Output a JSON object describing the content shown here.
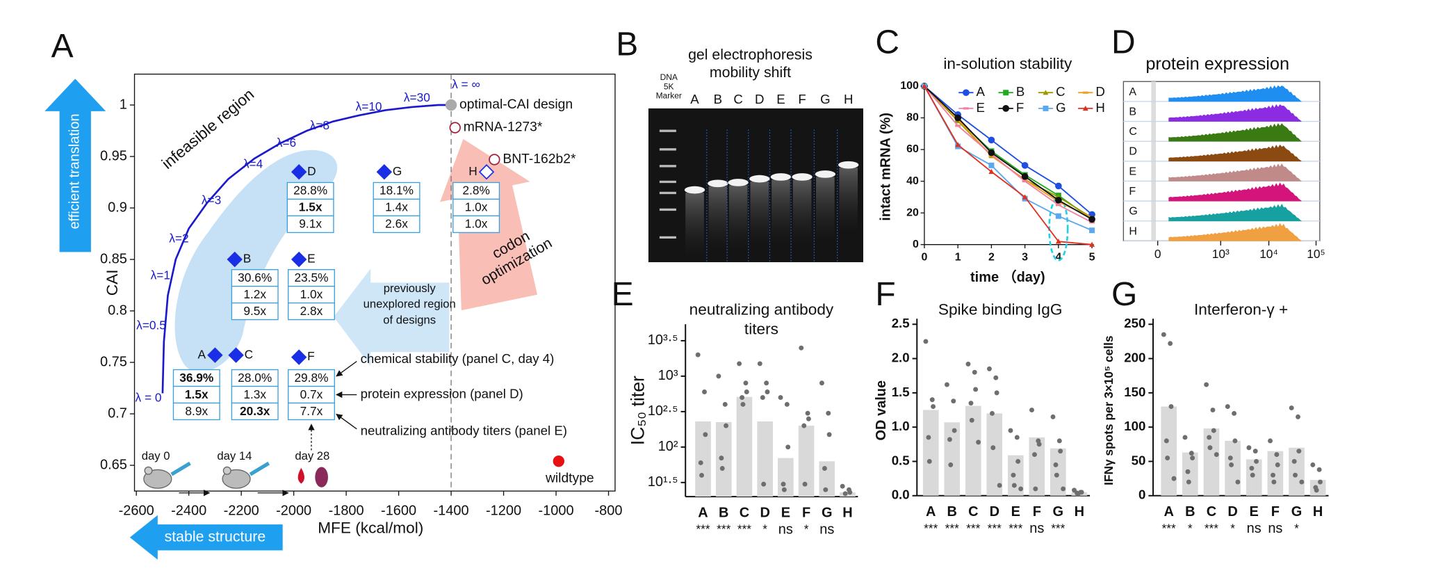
{
  "chart_data": [
    {
      "type": "scatter",
      "label": "A",
      "x_label": "MFE (kcal/mol)",
      "y_label": "CAI",
      "xlim": [
        -2600,
        -775
      ],
      "xticks": [
        -2600,
        -2400,
        -2200,
        -2000,
        -1800,
        -1600,
        -1400,
        -1200,
        -1000,
        -800
      ],
      "ylim": [
        0.625,
        1.03
      ],
      "yticks": [
        0.65,
        0.7,
        0.75,
        0.8,
        0.85,
        0.9,
        0.95,
        1
      ],
      "reference_x": -1400,
      "curve": {
        "color": "#1a1acc",
        "x": [
          -2500,
          -2495,
          -2480,
          -2450,
          -2400,
          -2330,
          -2250,
          -2150,
          -2050,
          -1950,
          -1850,
          -1750,
          -1650,
          -1550,
          -1450,
          -1400
        ],
        "y": [
          0.72,
          0.77,
          0.815,
          0.85,
          0.88,
          0.905,
          0.928,
          0.948,
          0.963,
          0.975,
          0.984,
          0.99,
          0.995,
          0.998,
          1.0,
          1.0
        ]
      },
      "lambda_labels": [
        "λ = 0",
        "λ=0.5",
        "λ=1",
        "λ=2",
        "λ=3",
        "λ=4",
        "λ=6",
        "λ=8",
        "λ=10",
        "λ=30",
        "λ = ∞"
      ],
      "points": [
        {
          "name": "A",
          "x": -2300,
          "y": 0.757,
          "marker": "diamond",
          "color": "#1a2ee6"
        },
        {
          "name": "C",
          "x": -2220,
          "y": 0.757,
          "marker": "diamond",
          "color": "#1a2ee6"
        },
        {
          "name": "B",
          "x": -2225,
          "y": 0.85,
          "marker": "diamond",
          "color": "#1a2ee6"
        },
        {
          "name": "D",
          "x": -1980,
          "y": 0.935,
          "marker": "diamond",
          "color": "#1a2ee6"
        },
        {
          "name": "E",
          "x": -1980,
          "y": 0.85,
          "marker": "diamond",
          "color": "#1a2ee6"
        },
        {
          "name": "F",
          "x": -1980,
          "y": 0.755,
          "marker": "diamond",
          "color": "#1a2ee6"
        },
        {
          "name": "G",
          "x": -1655,
          "y": 0.935,
          "marker": "diamond",
          "color": "#1a2ee6"
        },
        {
          "name": "H",
          "x": -1265,
          "y": 0.935,
          "marker": "open-diamond",
          "color": "#1a2ee6"
        },
        {
          "name": "mRNA-1273*",
          "x": -1385,
          "y": 0.978,
          "marker": "open-circle",
          "color": "#a0203a"
        },
        {
          "name": "BNT-162b2*",
          "x": -1235,
          "y": 0.947,
          "marker": "open-circle",
          "color": "#a0203a"
        },
        {
          "name": "optimal-CAI design",
          "x": -1400,
          "y": 1.0,
          "marker": "circle",
          "color": "#aaaaaa"
        },
        {
          "name": "wildtype",
          "x": -990,
          "y": 0.654,
          "marker": "circle",
          "color": "#e81010"
        }
      ],
      "metrics": [
        {
          "point": "D",
          "rows": [
            "28.8%",
            "1.5x",
            "9.1x"
          ],
          "bold": [
            false,
            true,
            false
          ]
        },
        {
          "point": "G",
          "rows": [
            "18.1%",
            "1.4x",
            "2.6x"
          ],
          "bold": [
            false,
            false,
            false
          ]
        },
        {
          "point": "H",
          "rows": [
            "2.8%",
            "1.0x",
            "1.0x"
          ],
          "bold": [
            false,
            false,
            false
          ]
        },
        {
          "point": "B",
          "rows": [
            "30.6%",
            "1.2x",
            "9.5x"
          ],
          "bold": [
            false,
            false,
            false
          ]
        },
        {
          "point": "E",
          "rows": [
            "23.5%",
            "1.0x",
            "2.8x"
          ],
          "bold": [
            false,
            false,
            false
          ]
        },
        {
          "point": "A",
          "rows": [
            "36.9%",
            "1.5x",
            "8.9x"
          ],
          "bold": [
            true,
            true,
            false
          ]
        },
        {
          "point": "C",
          "rows": [
            "28.0%",
            "1.3x",
            "20.3x"
          ],
          "bold": [
            false,
            false,
            true
          ]
        },
        {
          "point": "F",
          "rows": [
            "29.8%",
            "0.7x",
            "7.7x"
          ],
          "bold": [
            false,
            false,
            false
          ]
        }
      ],
      "annotations": {
        "infeasible": "infeasible region",
        "unexplored": [
          "previously",
          "unexplored region",
          "of designs"
        ],
        "codon": [
          "codon",
          "optimization"
        ],
        "legend": [
          "chemical stability (panel C, day 4)",
          "protein expression (panel D)",
          "neutralizing antibody titers (panel E)"
        ],
        "days": [
          "day 0",
          "day 14",
          "day 28"
        ],
        "y_arrow": "efficient translation",
        "x_arrow": "stable structure"
      }
    },
    {
      "type": "line",
      "label": "C",
      "title": "in-solution stability",
      "x_label": "time （day)",
      "y_label": "intact mRNA  (%)",
      "xlim": [
        0,
        5
      ],
      "xticks": [
        0,
        1,
        2,
        3,
        4,
        5
      ],
      "ylim": [
        0,
        100
      ],
      "yticks": [
        0,
        20,
        40,
        60,
        80,
        100
      ],
      "x": [
        0,
        1,
        2,
        3,
        4,
        5
      ],
      "series": [
        {
          "name": "A",
          "color": "#1f4fe0",
          "marker": "circle",
          "values": [
            100,
            82,
            66,
            50,
            37,
            19
          ]
        },
        {
          "name": "B",
          "color": "#22aa22",
          "marker": "square",
          "values": [
            100,
            79,
            59,
            44,
            31,
            16
          ]
        },
        {
          "name": "C",
          "color": "#9a9a00",
          "marker": "triangle",
          "values": [
            100,
            78,
            56,
            41,
            30,
            17
          ]
        },
        {
          "name": "D",
          "color": "#f0a020",
          "marker": "dash",
          "values": [
            100,
            79,
            56,
            41,
            27,
            17
          ]
        },
        {
          "name": "E",
          "color": "#f080a0",
          "marker": "dash",
          "values": [
            100,
            75,
            57,
            40,
            25,
            14
          ]
        },
        {
          "name": "F",
          "color": "#111111",
          "marker": "circle",
          "values": [
            100,
            80,
            58,
            43,
            28,
            16
          ]
        },
        {
          "name": "G",
          "color": "#5aa8f0",
          "marker": "square",
          "values": [
            100,
            62,
            50,
            29,
            18,
            9
          ]
        },
        {
          "name": "H",
          "color": "#e03020",
          "marker": "triangle",
          "values": [
            100,
            63,
            46,
            30,
            2,
            0
          ]
        }
      ]
    },
    {
      "type": "bar",
      "label": "E",
      "title": [
        "neutralizing antibody",
        "titers"
      ],
      "y_label": "IC₅₀ titer",
      "log": true,
      "ylim": [
        20,
        4500
      ],
      "yticks": [
        {
          "value": 31.62,
          "label": "10¹·⁵"
        },
        {
          "value": 100,
          "label": "10²"
        },
        {
          "value": 316.2,
          "label": "10²·⁵"
        },
        {
          "value": 1000,
          "label": "10³"
        },
        {
          "value": 3162,
          "label": "10³·⁵"
        }
      ],
      "categories": [
        "A",
        "B",
        "C",
        "D",
        "E",
        "F",
        "G",
        "H"
      ],
      "values": [
        230,
        225,
        510,
        230,
        70,
        200,
        63,
        23
      ],
      "color": "#d9d9d9",
      "points": [
        [
          2000,
          600,
          150,
          60,
          40
        ],
        [
          1000,
          400,
          200,
          70,
          50
        ],
        [
          1500,
          800,
          600,
          500,
          400
        ],
        [
          1500,
          800,
          600,
          500,
          30
        ],
        [
          500,
          400,
          100,
          30,
          25
        ],
        [
          2500,
          300,
          250,
          200,
          30
        ],
        [
          800,
          300,
          150,
          50,
          25
        ],
        [
          28,
          25,
          23,
          22
        ]
      ],
      "significance": [
        "***",
        "***",
        "***",
        "*",
        "ns",
        "*",
        "ns",
        null
      ]
    },
    {
      "type": "bar",
      "label": "F",
      "title": [
        "Spike binding IgG"
      ],
      "y_label": "OD value",
      "log": false,
      "ylim": [
        0,
        2.5
      ],
      "yticks": [
        {
          "value": 0,
          "label": "0.0"
        },
        0.5,
        {
          "value": 1,
          "label": "1.0"
        },
        1.5,
        {
          "value": 2,
          "label": "2.0"
        },
        2.5
      ],
      "categories": [
        "A",
        "B",
        "C",
        "D",
        "E",
        "F",
        "G",
        "H"
      ],
      "values": [
        1.25,
        1.07,
        1.31,
        1.2,
        0.59,
        0.85,
        0.69,
        0.05
      ],
      "color": "#d9d9d9",
      "points": [
        [
          2.25,
          1.4,
          1.3,
          0.85,
          0.5
        ],
        [
          1.62,
          1.38,
          0.95,
          0.82,
          0.45
        ],
        [
          1.92,
          1.8,
          1.55,
          1.35,
          1.1,
          0.78
        ],
        [
          1.85,
          1.72,
          1.5,
          1.2,
          0.7,
          0.15
        ],
        [
          0.95,
          0.85,
          0.5,
          0.3,
          0.15,
          0.1
        ],
        [
          1.25,
          0.8,
          0.75,
          0.6,
          0.1
        ],
        [
          1.15,
          0.8,
          0.65,
          0.45,
          0.3,
          0.1
        ],
        [
          0.08,
          0.05,
          0.05,
          0.04,
          0.02
        ]
      ],
      "significance": [
        "***",
        "***",
        "***",
        "***",
        "***",
        "ns",
        "***",
        null
      ]
    },
    {
      "type": "bar",
      "label": "G",
      "title": [
        "Interferon-γ +"
      ],
      "y_label": "IFNγ spots per 3×10⁵ cells",
      "log": false,
      "ylim": [
        0,
        250
      ],
      "yticks": [
        0,
        50,
        100,
        150,
        200,
        250
      ],
      "categories": [
        "A",
        "B",
        "C",
        "D",
        "E",
        "F",
        "G",
        "H"
      ],
      "values": [
        130,
        63,
        98,
        80,
        53,
        65,
        70,
        23
      ],
      "color": "#d9d9d9",
      "points": [
        [
          235,
          222,
          130,
          80,
          55,
          25
        ],
        [
          85,
          62,
          55,
          35,
          20
        ],
        [
          162,
          125,
          95,
          85,
          70,
          60
        ],
        [
          130,
          120,
          80,
          55,
          45,
          20
        ],
        [
          70,
          65,
          50,
          40,
          30
        ],
        [
          80,
          60,
          45,
          30,
          20
        ],
        [
          128,
          115,
          65,
          50,
          30,
          20
        ],
        [
          45,
          38,
          20,
          12,
          8
        ]
      ],
      "significance": [
        "***",
        "*",
        "***",
        "*",
        "ns",
        "ns",
        "*",
        null
      ]
    }
  ],
  "panel_b": {
    "label": "B",
    "title": [
      "gel electrophoresis",
      "mobility shift"
    ],
    "marker": [
      "DNA",
      "5K",
      "Marker"
    ],
    "lanes": [
      "A",
      "B",
      "C",
      "D",
      "E",
      "F",
      "G",
      "H"
    ]
  },
  "panel_d": {
    "label": "D",
    "title": "protein expression",
    "rows": [
      "A",
      "B",
      "C",
      "D",
      "E",
      "F",
      "G",
      "H"
    ],
    "xticks": [
      "0",
      "10³",
      "10⁴",
      "10⁵"
    ],
    "colors": [
      "#1f8ef1",
      "#8b2be2",
      "#3a7a12",
      "#8a4a12",
      "#c08a88",
      "#d4147a",
      "#17a0a0",
      "#f0a040"
    ]
  }
}
